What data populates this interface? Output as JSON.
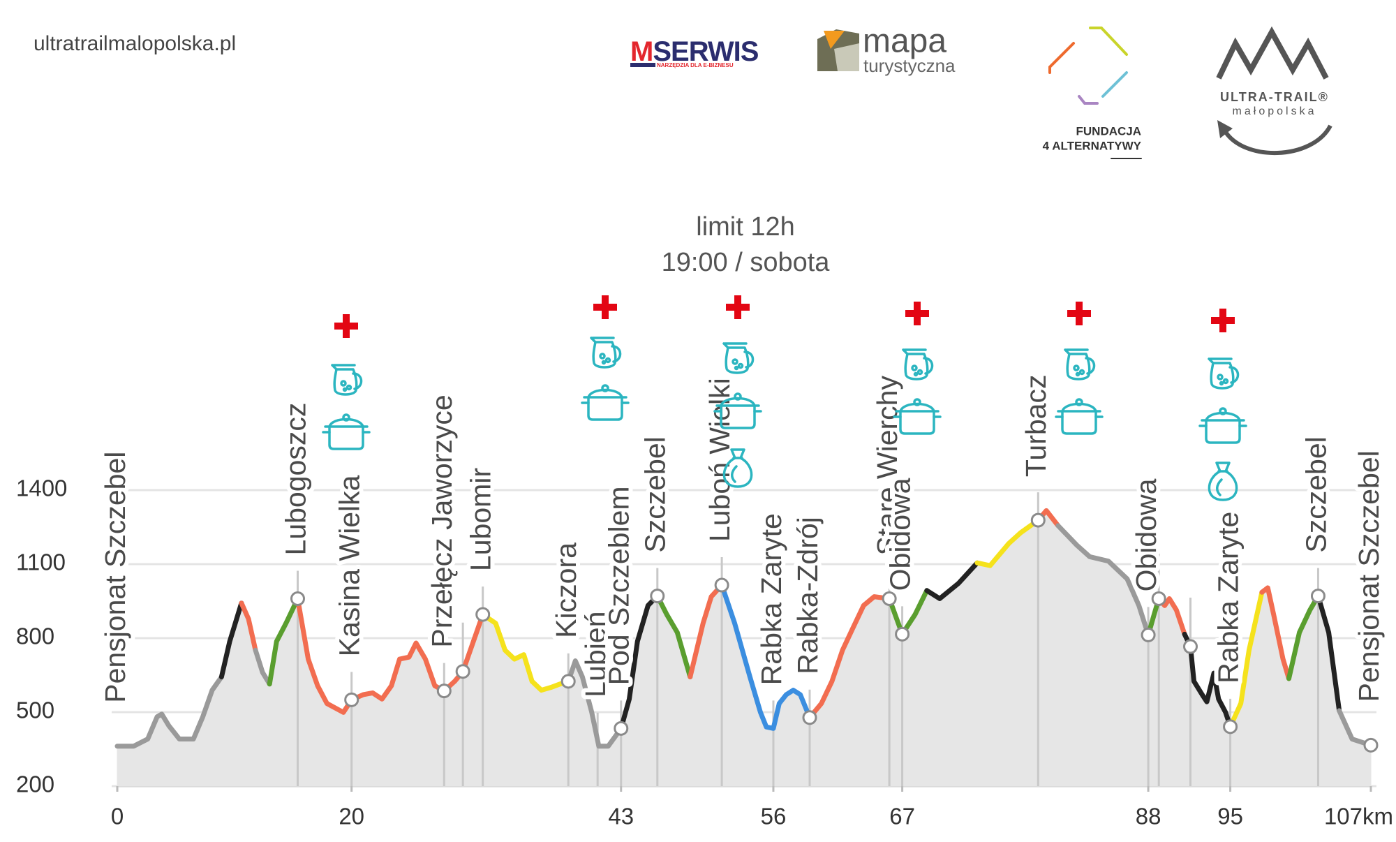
{
  "header": {
    "site": "ultratrailmalopolska.pl",
    "logos": {
      "mserwis": {
        "lead": "M",
        "rest": "SERWIS",
        "tagline": "NARZĘDZIA DLA E-BIZNESU"
      },
      "mapa": [
        "mapa",
        "turystyczna"
      ],
      "fundacja": [
        "FUNDACJA",
        "4 ALTERNATYWY"
      ],
      "ultratrail": [
        "ULTRA-TRAIL®",
        "małopolska"
      ]
    }
  },
  "chart_data": {
    "type": "area",
    "title": "limit 12h",
    "subtitle": "19:00 / sobota",
    "xlim": [
      0,
      107
    ],
    "ylim": [
      200,
      1400
    ],
    "xticks": [
      0,
      20,
      43,
      56,
      67,
      88,
      95,
      {
        "value": 107,
        "label": "107km"
      }
    ],
    "yticks": [
      200,
      500,
      800,
      1100,
      1400
    ],
    "grid": true,
    "fill": "#e6e6e6",
    "series": [
      {
        "color": "#9a9a9a",
        "x": [
          0,
          1.4,
          2.6,
          3.4,
          3.8,
          4.4,
          5.3,
          6.5,
          7.3,
          8.1,
          8.9
        ],
        "values": [
          362,
          362,
          391,
          481,
          492,
          445,
          391,
          391,
          481,
          589,
          643
        ]
      },
      {
        "color": "#222222",
        "x": [
          8.9,
          9.6,
          10.6
        ],
        "values": [
          643,
          787,
          942
        ]
      },
      {
        "color": "#f26d50",
        "x": [
          10.6,
          11.2,
          11.8
        ],
        "values": [
          942,
          878,
          751
        ]
      },
      {
        "color": "#9a9a9a",
        "x": [
          11.8,
          12.4,
          13.0
        ],
        "values": [
          751,
          661,
          614
        ]
      },
      {
        "color": "#5a9e2f",
        "x": [
          13.0,
          13.6,
          14.4,
          15.4
        ],
        "values": [
          614,
          787,
          860,
          960
        ]
      },
      {
        "color": "#f26d50",
        "x": [
          15.4,
          16.3,
          17.1,
          17.9,
          19.3,
          20,
          21.0,
          21.8,
          22.6,
          23.4,
          24.1,
          24.9,
          25.5,
          26.3,
          27.1,
          27.9,
          28.8,
          29.5,
          30.4,
          31.2
        ],
        "values": [
          960,
          715,
          607,
          535,
          499,
          550,
          571,
          578,
          553,
          607,
          715,
          723,
          780,
          715,
          607,
          586,
          625,
          665,
          787,
          896
        ]
      },
      {
        "color": "#f5e21c",
        "x": [
          31.2,
          32.3,
          33.1,
          33.9,
          34.7,
          35.4,
          36.2,
          37.0,
          37.8,
          38.5
        ],
        "values": [
          896,
          860,
          751,
          715,
          733,
          625,
          589,
          600,
          614,
          625
        ]
      },
      {
        "color": "#9a9a9a",
        "x": [
          38.5,
          39.1,
          39.7,
          40.5,
          41.1,
          41.9,
          43
        ],
        "values": [
          625,
          708,
          643,
          499,
          362,
          362,
          434
        ]
      },
      {
        "color": "#222222",
        "x": [
          43,
          43.7,
          44.4,
          45.3,
          46.1
        ],
        "values": [
          434,
          553,
          787,
          932,
          971
        ]
      },
      {
        "color": "#5a9e2f",
        "x": [
          46.1,
          46.9,
          47.8,
          48.9
        ],
        "values": [
          971,
          896,
          823,
          643
        ]
      },
      {
        "color": "#f26d50",
        "x": [
          48.9,
          50.0,
          50.7,
          51.6
        ],
        "values": [
          643,
          860,
          968,
          1015
        ]
      },
      {
        "color": "#3b8ee0",
        "x": [
          51.6,
          52.7,
          54.0,
          54.9,
          55.4,
          56,
          56.5,
          57.1,
          57.7,
          58.3,
          59.1
        ],
        "values": [
          1015,
          860,
          643,
          499,
          440,
          434,
          535,
          571,
          589,
          571,
          478
        ]
      },
      {
        "color": "#f26d50",
        "x": [
          59.1,
          60.1,
          61.0,
          61.9,
          62.8,
          63.7,
          64.6,
          65.9
        ],
        "values": [
          478,
          535,
          625,
          751,
          842,
          932,
          968,
          960
        ]
      },
      {
        "color": "#5a9e2f",
        "x": [
          65.9,
          67,
          68.1,
          69.1
        ],
        "values": [
          960,
          816,
          896,
          993
        ]
      },
      {
        "color": "#222222",
        "x": [
          69.1,
          70.2,
          71.8,
          73.4
        ],
        "values": [
          993,
          960,
          1022,
          1105
        ]
      },
      {
        "color": "#f5e21c",
        "x": [
          73.4,
          74.5,
          76.1,
          77.1,
          78.6
        ],
        "values": [
          1105,
          1094,
          1184,
          1227,
          1278
        ]
      },
      {
        "color": "#f26d50",
        "x": [
          78.6,
          79.3,
          80.3
        ],
        "values": [
          1278,
          1317,
          1256
        ]
      },
      {
        "color": "#9a9a9a",
        "x": [
          80.3,
          81.9,
          83.0,
          84.6,
          86.2,
          87.2,
          88
        ],
        "values": [
          1256,
          1177,
          1130,
          1112,
          1040,
          932,
          813
        ]
      },
      {
        "color": "#5a9e2f",
        "x": [
          88,
          88.5,
          88.9
        ],
        "values": [
          813,
          896,
          960
        ]
      },
      {
        "color": "#f26d50",
        "x": [
          88.9,
          89.4,
          89.8,
          90.4,
          91.1
        ],
        "values": [
          960,
          932,
          960,
          914,
          816
        ]
      },
      {
        "color": "#222222",
        "x": [
          91.1,
          91.6,
          91.9,
          92.6,
          93.0,
          93.6,
          94.0,
          94.6,
          95
        ],
        "values": [
          816,
          766,
          625,
          571,
          542,
          658,
          553,
          499,
          441
        ]
      },
      {
        "color": "#f5e21c",
        "x": [
          95,
          95.9,
          96.6,
          97.7
        ],
        "values": [
          441,
          535,
          751,
          986
        ]
      },
      {
        "color": "#f26d50",
        "x": [
          97.7,
          98.2,
          98.7,
          99.5,
          100.0
        ],
        "values": [
          986,
          1004,
          896,
          715,
          636
        ]
      },
      {
        "color": "#5a9e2f",
        "x": [
          100.0,
          100.9,
          101.8,
          102.5
        ],
        "values": [
          636,
          823,
          914,
          971
        ]
      },
      {
        "color": "#222222",
        "x": [
          102.5,
          103.4,
          104.3
        ],
        "values": [
          971,
          823,
          506
        ]
      },
      {
        "color": "#9a9a9a",
        "x": [
          104.3,
          105.4,
          107
        ],
        "values": [
          506,
          391,
          366
        ]
      }
    ],
    "checkpoints": {
      "labels": [
        "Pensjonat Szczebel",
        "Lubogoszcz",
        "Kasina Wielka",
        "Przełęcz Jaworzyce",
        null,
        "Lubomir",
        "Kiczora",
        "Lubień",
        "Pod Szczeblem",
        "Szczebel",
        "Luboń Wielki",
        "Rabka Zaryte",
        "Rabka-Zdrój",
        "Stare Wierchy",
        "Obidowa",
        "Turbacz",
        "Obidowa",
        null,
        null,
        "Rabka Zaryte",
        "Szczebel",
        "Pensjonat Szczebel"
      ],
      "x": [
        0,
        15.4,
        20,
        27.9,
        29.5,
        31.2,
        38.5,
        41.0,
        43,
        46.1,
        51.6,
        56,
        59.1,
        65.9,
        67,
        78.6,
        88,
        88.9,
        91.6,
        95,
        102.5,
        107
      ],
      "values": [
        null,
        960,
        550,
        586,
        665,
        896,
        625,
        null,
        434,
        971,
        1015,
        null,
        478,
        960,
        816,
        1278,
        813,
        960,
        766,
        441,
        971,
        366
      ]
    }
  }
}
